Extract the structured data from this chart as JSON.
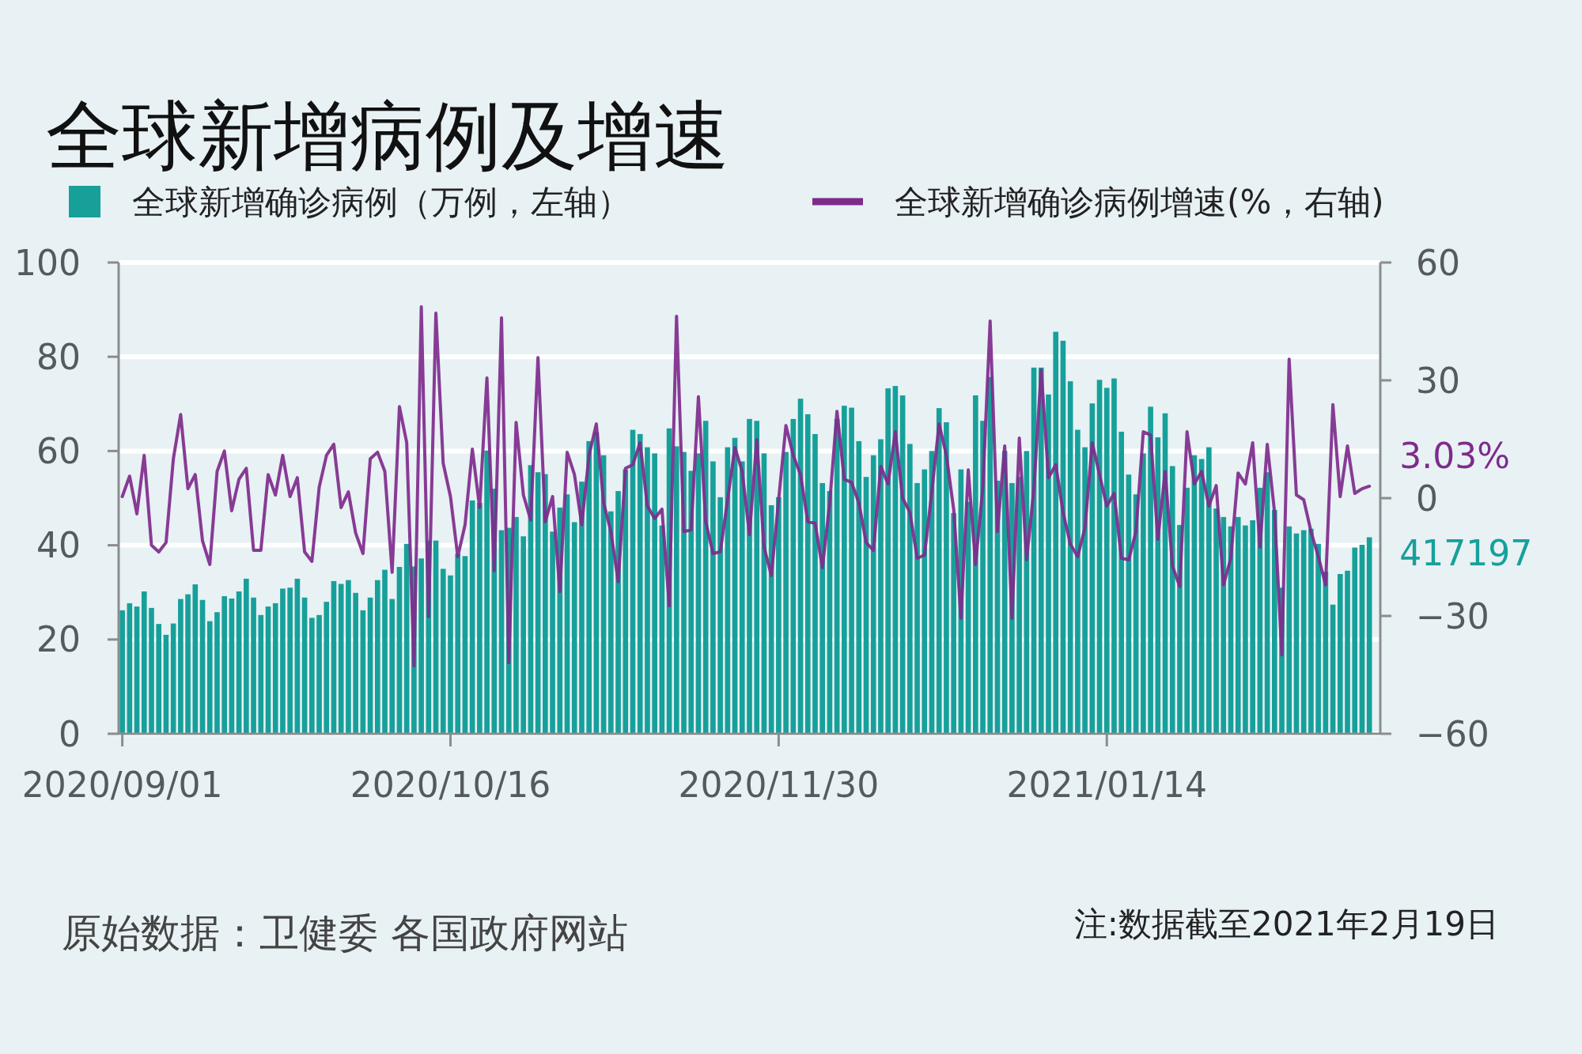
{
  "chart_data": {
    "type": "bar",
    "title": "全球新增病例及增速",
    "x": [
      "2020-09-01",
      "2020-09-02",
      "2020-09-03",
      "2020-09-04",
      "2020-09-05",
      "2020-09-06",
      "2020-09-07",
      "2020-09-08",
      "2020-09-09",
      "2020-09-10",
      "2020-09-11",
      "2020-09-12",
      "2020-09-13",
      "2020-09-14",
      "2020-09-15",
      "2020-09-16",
      "2020-09-17",
      "2020-09-18",
      "2020-09-19",
      "2020-09-20",
      "2020-09-21",
      "2020-09-22",
      "2020-09-23",
      "2020-09-24",
      "2020-09-25",
      "2020-09-26",
      "2020-09-27",
      "2020-09-28",
      "2020-09-29",
      "2020-09-30",
      "2020-10-01",
      "2020-10-02",
      "2020-10-03",
      "2020-10-04",
      "2020-10-05",
      "2020-10-06",
      "2020-10-07",
      "2020-10-08",
      "2020-10-09",
      "2020-10-10",
      "2020-10-11",
      "2020-10-12",
      "2020-10-13",
      "2020-10-14",
      "2020-10-15",
      "2020-10-16",
      "2020-10-17",
      "2020-10-18",
      "2020-10-19",
      "2020-10-20",
      "2020-10-21",
      "2020-10-22",
      "2020-10-23",
      "2020-10-24",
      "2020-10-25",
      "2020-10-26",
      "2020-10-27",
      "2020-10-28",
      "2020-10-29",
      "2020-10-30",
      "2020-10-31",
      "2020-11-01",
      "2020-11-02",
      "2020-11-03",
      "2020-11-04",
      "2020-11-05",
      "2020-11-06",
      "2020-11-07",
      "2020-11-08",
      "2020-11-09",
      "2020-11-10",
      "2020-11-11",
      "2020-11-12",
      "2020-11-13",
      "2020-11-14",
      "2020-11-15",
      "2020-11-16",
      "2020-11-17",
      "2020-11-18",
      "2020-11-19",
      "2020-11-20",
      "2020-11-21",
      "2020-11-22",
      "2020-11-23",
      "2020-11-24",
      "2020-11-25",
      "2020-11-26",
      "2020-11-27",
      "2020-11-28",
      "2020-11-29",
      "2020-11-30",
      "2020-12-01",
      "2020-12-02",
      "2020-12-03",
      "2020-12-04",
      "2020-12-05",
      "2020-12-06",
      "2020-12-07",
      "2020-12-08",
      "2020-12-09",
      "2020-12-10",
      "2020-12-11",
      "2020-12-12",
      "2020-12-13",
      "2020-12-14",
      "2020-12-15",
      "2020-12-16",
      "2020-12-17",
      "2020-12-18",
      "2020-12-19",
      "2020-12-20",
      "2020-12-21",
      "2020-12-22",
      "2020-12-23",
      "2020-12-24",
      "2020-12-25",
      "2020-12-26",
      "2020-12-27",
      "2020-12-28",
      "2020-12-29",
      "2020-12-30",
      "2020-12-31",
      "2021-01-01",
      "2021-01-02",
      "2021-01-03",
      "2021-01-04",
      "2021-01-05",
      "2021-01-06",
      "2021-01-07",
      "2021-01-08",
      "2021-01-09",
      "2021-01-10",
      "2021-01-11",
      "2021-01-12",
      "2021-01-13",
      "2021-01-14",
      "2021-01-15",
      "2021-01-16",
      "2021-01-17",
      "2021-01-18",
      "2021-01-19",
      "2021-01-20",
      "2021-01-21",
      "2021-01-22",
      "2021-01-23",
      "2021-01-24",
      "2021-01-25",
      "2021-01-26",
      "2021-01-27",
      "2021-01-28",
      "2021-01-29",
      "2021-01-30",
      "2021-01-31",
      "2021-02-01",
      "2021-02-02",
      "2021-02-03",
      "2021-02-04",
      "2021-02-05",
      "2021-02-06",
      "2021-02-07",
      "2021-02-08",
      "2021-02-09",
      "2021-02-10",
      "2021-02-11",
      "2021-02-12",
      "2021-02-13",
      "2021-02-14",
      "2021-02-15",
      "2021-02-16",
      "2021-02-17",
      "2021-02-18",
      "2021-02-19"
    ],
    "series": [
      {
        "name": "全球新增确诊病例（万例，左轴）",
        "color": "#17a09a",
        "values": [
          26.2,
          27.7,
          27,
          30.2,
          26.7,
          23.3,
          21,
          23.4,
          28.6,
          29.6,
          31.7,
          28.4,
          23.9,
          25.8,
          29.2,
          28.7,
          30.2,
          32.9,
          28.9,
          25.2,
          27,
          27.7,
          30.8,
          31,
          32.9,
          28.9,
          24.6,
          25.2,
          28,
          32.4,
          31.8,
          32.6,
          29.9,
          26.2,
          28.9,
          32.6,
          34.8,
          28.6,
          35.4,
          40.3,
          35.5,
          37.2,
          41,
          41,
          35,
          33.6,
          38.2,
          37.7,
          49.5,
          49,
          60.1,
          52,
          43.2,
          43.7,
          46,
          41.9,
          57,
          55.5,
          55.1,
          42.9,
          48,
          50.8,
          44.9,
          53.5,
          62.1,
          64,
          59.1,
          47.2,
          51.5,
          56.1,
          64.5,
          63.6,
          60.8,
          59.5,
          44.2,
          64.8,
          61,
          59.8,
          55.8,
          59.5,
          66.4,
          57.8,
          50.2,
          60.8,
          62.8,
          57.8,
          66.8,
          66.4,
          59.5,
          48.5,
          50.2,
          59.8,
          66.8,
          71.1,
          67.8,
          63.6,
          53.2,
          51.5,
          66.8,
          69.6,
          69.2,
          62.1,
          54.5,
          59.1,
          62.5,
          73.3,
          73.8,
          71.8,
          61.5,
          53.2,
          56.1,
          60,
          69.1,
          66.1,
          46.8,
          56.1,
          49.2,
          71.8,
          66.4,
          75.7,
          53.7,
          60,
          53.2,
          54.5,
          60,
          77.7,
          77.7,
          72,
          85.3,
          83.4,
          74.8,
          64.5,
          60.8,
          70.1,
          75.1,
          73.4,
          75.4,
          64.1,
          55,
          50.8,
          59.5,
          69.4,
          62.9,
          68,
          56.8,
          44.3,
          52.2,
          59.1,
          58.3,
          60.8,
          47.8,
          46,
          44,
          46,
          44.2,
          45.3,
          52.2,
          55.5,
          47.5,
          31,
          44,
          42.5,
          43.2,
          43.5,
          40.3,
          34.4,
          27.4,
          33.9,
          34.6,
          39.5,
          40.1,
          41.7
        ]
      },
      {
        "name": "全球新增确诊病例增速(%，右轴)",
        "type": "line",
        "axis": "y2",
        "color": "#7e2b8c",
        "line_style": "solid",
        "values": [
          0.4,
          5.6,
          -4,
          10.9,
          -12,
          -13.7,
          -11.3,
          10,
          21.3,
          2.4,
          6,
          -10.9,
          -16.9,
          6.8,
          12,
          -3.2,
          4.8,
          7.6,
          -13.3,
          -13.3,
          6,
          0.8,
          10.9,
          0.4,
          5.2,
          -13.7,
          -16.1,
          2.8,
          10.9,
          13.7,
          -2.4,
          1.6,
          -8.9,
          -14.1,
          10,
          11.7,
          6.8,
          -18.9,
          23.3,
          14.1,
          -42.7,
          48.7,
          -30.2,
          47.1,
          8.9,
          0.4,
          -14.9,
          -6.8,
          12.5,
          -2.4,
          30.6,
          -18.5,
          45.9,
          -41.9,
          19.3,
          0.8,
          -5.6,
          35.8,
          -6,
          0.4,
          -23.8,
          11.7,
          6,
          -6.8,
          10.9,
          18.9,
          -1.2,
          -8.5,
          -21.3,
          7.6,
          8.5,
          14.1,
          -2,
          -5.2,
          -2.8,
          -27.4,
          46.3,
          -8.5,
          -8.1,
          25.8,
          -6,
          -14.1,
          -13.7,
          -0.4,
          12.9,
          6.8,
          -9.3,
          14.9,
          -12.5,
          -19.7,
          -0.4,
          18.5,
          10.9,
          6,
          -6,
          -6.4,
          -17.7,
          -1.2,
          22.1,
          4.8,
          4,
          -1.2,
          -11.3,
          -13.3,
          8.1,
          3.6,
          16.9,
          0,
          -3.6,
          -15.3,
          -14.5,
          1.6,
          18.9,
          10.9,
          -2.8,
          -30.6,
          7.2,
          -16.9,
          2.8,
          45.1,
          -8.5,
          13.3,
          -30.6,
          15.3,
          -15.7,
          2.4,
          32.6,
          5.2,
          8.5,
          -3.6,
          -11.7,
          -14.9,
          -7.6,
          14.1,
          6,
          -2,
          1.2,
          -15.3,
          -15.7,
          -8.5,
          16.9,
          16.1,
          -10.5,
          6.8,
          -17.3,
          -22.5,
          16.9,
          3.6,
          6.8,
          -2,
          3.2,
          -22.1,
          -15.3,
          6.4,
          3.6,
          14.1,
          -12.5,
          13.7,
          -3.6,
          -39.9,
          35.4,
          0.8,
          -0.4,
          -8.5,
          -14.9,
          -22.1,
          23.8,
          0.4,
          13.3,
          1.2,
          2.4,
          3.03
        ],
        "value_labels": [
          null,
          null,
          null,
          null,
          null,
          null,
          null,
          null,
          null,
          null,
          null,
          null,
          null,
          null,
          null,
          null,
          null,
          null,
          null,
          null,
          null,
          null,
          null,
          null,
          null,
          null,
          null,
          null,
          null,
          null,
          null,
          null,
          null,
          null,
          null,
          null,
          null,
          null,
          null,
          null,
          null,
          null,
          null,
          null,
          null,
          null,
          null,
          null,
          null,
          null,
          null,
          null,
          null,
          null,
          null,
          null,
          null,
          null,
          null,
          null,
          null,
          null,
          null,
          null,
          null,
          null,
          null,
          null,
          null,
          null,
          null,
          null,
          null,
          null,
          null,
          null,
          null,
          null,
          null,
          null,
          null,
          null,
          null,
          null,
          null,
          null,
          null,
          null,
          null,
          null,
          null,
          null,
          null,
          null,
          null,
          null,
          null,
          null,
          null,
          null,
          null,
          null,
          null,
          null,
          null,
          null,
          null,
          null,
          null,
          null,
          null,
          null,
          null,
          null,
          null,
          null,
          null,
          null,
          null,
          null,
          null,
          null,
          null,
          null,
          null,
          null,
          null,
          null,
          null,
          null,
          null,
          null,
          null,
          null,
          null,
          null,
          null,
          null,
          null,
          null,
          null,
          null,
          null,
          null,
          null,
          null,
          null,
          null,
          null,
          null,
          null,
          null,
          null,
          null,
          null,
          null,
          null,
          null,
          null,
          null,
          null,
          null,
          null,
          null,
          null,
          null,
          null,
          null,
          null,
          null,
          null,
          "3.03%"
        ]
      }
    ],
    "xlim": [
      "2020-08-31T12:00",
      "2021-02-20T12:00"
    ],
    "xticks": [
      {
        "value": "2020-09-01",
        "label": "2020/09/01"
      },
      {
        "value": "2020-10-16",
        "label": "2020/10/16"
      },
      {
        "value": "2020-11-30",
        "label": "2020/11/30"
      },
      {
        "value": "2021-01-14",
        "label": "2021/01/14"
      }
    ],
    "ylim": [
      0,
      100
    ],
    "yticks": [
      0,
      20,
      40,
      60,
      80,
      100
    ],
    "y2lim": [
      -60,
      60
    ],
    "y2ticks": [
      {
        "value": -60,
        "label": "−60"
      },
      {
        "value": -30,
        "label": "−30"
      },
      0,
      30,
      60
    ],
    "grid": "y",
    "legend": "top",
    "annotations": [
      {
        "text": "417197",
        "x": "2021-02-19",
        "y": 41.7
      },
      "原始数据：卫健委 各国政府网站",
      "注:数据截至2021年2月19日"
    ]
  }
}
